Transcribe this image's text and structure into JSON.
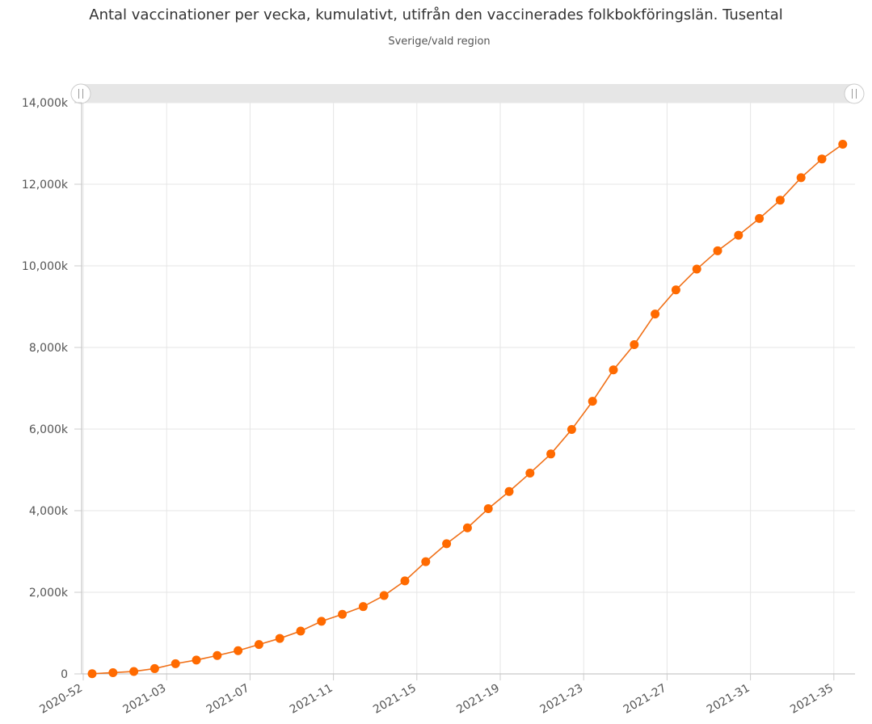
{
  "chart_data": {
    "type": "line",
    "title": "Antal vaccinationer per vecka, kumulativt, utifrån den vaccinerades folkbokföringslän. Tusental",
    "subtitle": "Sverige/vald region",
    "xlabel": "",
    "ylabel": "",
    "ylim": [
      0,
      14000
    ],
    "yticks": [
      0,
      2000,
      4000,
      6000,
      8000,
      10000,
      12000,
      14000
    ],
    "ytick_labels": [
      "0",
      "2,000k",
      "4,000k",
      "6,000k",
      "8,000k",
      "10,000k",
      "12,000k",
      "14,000k"
    ],
    "xtick_labels": [
      "2020-52",
      "2021-03",
      "2021-07",
      "2021-11",
      "2021-15",
      "2021-19",
      "2021-23",
      "2021-27",
      "2021-31",
      "2021-35"
    ],
    "xtick_positions": [
      0,
      4,
      8,
      12,
      16,
      20,
      24,
      28,
      32,
      36
    ],
    "grid": true,
    "line_color": "#f07018",
    "marker_color": "#ff6a00",
    "x": [
      "2020-52",
      "2020-53",
      "2021-01",
      "2021-02",
      "2021-03",
      "2021-04",
      "2021-05",
      "2021-06",
      "2021-07",
      "2021-08",
      "2021-09",
      "2021-10",
      "2021-11",
      "2021-12",
      "2021-13",
      "2021-14",
      "2021-15",
      "2021-16",
      "2021-17",
      "2021-18",
      "2021-19",
      "2021-20",
      "2021-21",
      "2021-22",
      "2021-23",
      "2021-24",
      "2021-25",
      "2021-26",
      "2021-27",
      "2021-28",
      "2021-29",
      "2021-30",
      "2021-31",
      "2021-32",
      "2021-33",
      "2021-34",
      "2021-35"
    ],
    "series": [
      {
        "values": [
          5,
          30,
          60,
          130,
          250,
          340,
          450,
          570,
          720,
          870,
          1050,
          1290,
          1460,
          1650,
          1920,
          2280,
          2750,
          3190,
          3580,
          4050,
          4470,
          4920,
          5390,
          5990,
          6680,
          7450,
          8070,
          8820,
          9410,
          9920,
          10370,
          10750,
          11160,
          11610,
          12160,
          12620,
          12980
        ]
      }
    ]
  },
  "navigator": {
    "left_handle_icon": "handle-grip-icon",
    "right_handle_icon": "handle-grip-icon"
  }
}
